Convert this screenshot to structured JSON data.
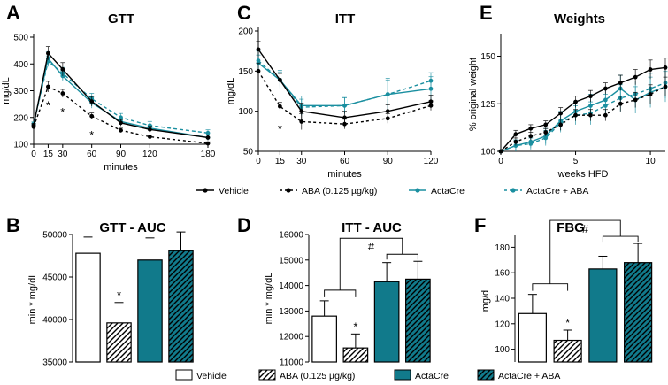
{
  "colors": {
    "vehicle": "#000000",
    "acta": "#1a8fa0",
    "bar_acta": "#117a8b"
  },
  "legend_top": [
    {
      "label": "Vehicle",
      "color": "#000000",
      "dash": false
    },
    {
      "label": "ABA (0.125 µg/kg)",
      "color": "#000000",
      "dash": true
    },
    {
      "label": "ActaCre",
      "color": "#1a8fa0",
      "dash": false
    },
    {
      "label": "ActaCre + ABA",
      "color": "#1a8fa0",
      "dash": true
    }
  ],
  "legend_bottom": [
    {
      "label": "Vehicle",
      "fill": "white"
    },
    {
      "label": "ABA (0.125 µg/kg)",
      "fill": "hatch-white"
    },
    {
      "label": "ActaCre",
      "fill": "teal"
    },
    {
      "label": "ActaCre + ABA",
      "fill": "hatch-teal"
    }
  ],
  "chart_data": [
    {
      "panel": "A",
      "type": "line",
      "title": "GTT",
      "xlabel": "minutes",
      "ylabel": "mg/dL",
      "x": [
        0,
        15,
        30,
        60,
        90,
        120,
        180
      ],
      "xticks": [
        0,
        15,
        30,
        60,
        90,
        120,
        180
      ],
      "xlim": [
        0,
        180
      ],
      "ylim": [
        100,
        500
      ],
      "yticks": [
        100,
        200,
        300,
        400,
        500
      ],
      "series": [
        {
          "name": "Vehicle",
          "values": [
            170,
            440,
            380,
            260,
            180,
            155,
            125
          ],
          "err": [
            8,
            25,
            25,
            18,
            12,
            12,
            10
          ]
        },
        {
          "name": "ABA (0.125 µg/kg)",
          "values": [
            165,
            315,
            290,
            205,
            152,
            128,
            103
          ],
          "err": [
            8,
            20,
            15,
            12,
            8,
            7,
            6
          ]
        },
        {
          "name": "ActaCre",
          "values": [
            175,
            420,
            355,
            255,
            185,
            160,
            125
          ],
          "err": [
            8,
            25,
            20,
            20,
            12,
            12,
            10
          ]
        },
        {
          "name": "ActaCre + ABA",
          "values": [
            175,
            410,
            365,
            270,
            200,
            170,
            142
          ],
          "err": [
            8,
            20,
            22,
            20,
            15,
            15,
            12
          ]
        }
      ],
      "annotations": [
        {
          "x": 15,
          "y": 250,
          "text": "*"
        },
        {
          "x": 30,
          "y": 225,
          "text": "*"
        },
        {
          "x": 60,
          "y": 140,
          "text": "*"
        }
      ]
    },
    {
      "panel": "C",
      "type": "line",
      "title": "ITT",
      "xlabel": "minutes",
      "ylabel": "mg/dL",
      "x": [
        0,
        15,
        30,
        60,
        90,
        120
      ],
      "xticks": [
        0,
        15,
        30,
        60,
        90,
        120
      ],
      "xlim": [
        0,
        120
      ],
      "ylim": [
        50,
        200
      ],
      "yticks": [
        50,
        100,
        150,
        200
      ],
      "series": [
        {
          "name": "Vehicle",
          "values": [
            177,
            139,
            100,
            92,
            100,
            112
          ],
          "err": [
            10,
            8,
            10,
            8,
            8,
            8
          ]
        },
        {
          "name": "ABA (0.125 µg/kg)",
          "values": [
            150,
            106,
            87,
            84,
            91,
            107
          ],
          "err": [
            10,
            5,
            10,
            6,
            6,
            6
          ]
        },
        {
          "name": "ActaCre",
          "values": [
            160,
            139,
            107,
            107,
            121,
            128
          ],
          "err": [
            10,
            10,
            12,
            10,
            18,
            15
          ]
        },
        {
          "name": "ActaCre + ABA",
          "values": [
            163,
            139,
            105,
            107,
            121,
            138
          ],
          "err": [
            12,
            12,
            10,
            10,
            20,
            10
          ]
        }
      ],
      "annotations": [
        {
          "x": 15,
          "y": 80,
          "text": "*"
        }
      ]
    },
    {
      "panel": "E",
      "type": "line",
      "title": "Weights",
      "xlabel": "weeks HFD",
      "ylabel": "% original weight",
      "x": [
        0,
        1,
        2,
        3,
        4,
        5,
        6,
        7,
        8,
        9,
        10,
        11
      ],
      "xticks": [
        0,
        5,
        10
      ],
      "xlim": [
        0,
        11
      ],
      "ylim": [
        100,
        160
      ],
      "yticks": [
        100,
        125,
        150
      ],
      "series": [
        {
          "name": "Vehicle",
          "values": [
            100,
            109,
            112,
            114,
            120,
            126,
            129,
            133,
            136,
            139,
            143,
            144
          ],
          "err": [
            0,
            2,
            2,
            2,
            3,
            3,
            3,
            3,
            4,
            4,
            5,
            5
          ]
        },
        {
          "name": "ABA (0.125 µg/kg)",
          "values": [
            100,
            105,
            108,
            110,
            114,
            119,
            119,
            119,
            125,
            127,
            130,
            134
          ],
          "err": [
            0,
            2,
            2,
            2,
            3,
            3,
            3,
            3,
            4,
            4,
            5,
            5
          ]
        },
        {
          "name": "ActaCre",
          "values": [
            100,
            103,
            105,
            108,
            116,
            121,
            124,
            127,
            133,
            127,
            131,
            134
          ],
          "err": [
            0,
            3,
            3,
            4,
            5,
            5,
            6,
            6,
            7,
            7,
            8,
            8
          ]
        },
        {
          "name": "ActaCre + ABA",
          "values": [
            100,
            103,
            104,
            107,
            115,
            119,
            120,
            124,
            128,
            130,
            133,
            136
          ],
          "err": [
            0,
            3,
            3,
            4,
            5,
            5,
            6,
            6,
            7,
            7,
            8,
            8
          ]
        }
      ],
      "annotations": []
    },
    {
      "panel": "B",
      "type": "bar",
      "title": "GTT - AUC",
      "xlabel": "",
      "ylabel": "min * mg/dL",
      "categories": [
        "Vehicle",
        "ABA (0.125 µg/kg)",
        "ActaCre",
        "ActaCre + ABA"
      ],
      "values": [
        47800,
        39600,
        47000,
        48100
      ],
      "err": [
        1900,
        2400,
        2600,
        2200
      ],
      "ylim": [
        35000,
        50000
      ],
      "yticks": [
        35000,
        40000,
        45000,
        50000
      ],
      "annotations": [
        {
          "index": 1,
          "text": "*"
        }
      ],
      "brackets": []
    },
    {
      "panel": "D",
      "type": "bar",
      "title": "ITT - AUC",
      "xlabel": "",
      "ylabel": "min * mg/dL",
      "categories": [
        "Vehicle",
        "ABA (0.125 µg/kg)",
        "ActaCre",
        "ActaCre + ABA"
      ],
      "values": [
        12800,
        11550,
        14150,
        14250
      ],
      "err": [
        600,
        550,
        750,
        700
      ],
      "ylim": [
        11000,
        16000
      ],
      "yticks": [
        11000,
        12000,
        13000,
        14000,
        15000,
        16000
      ],
      "annotations": [
        {
          "index": 1,
          "text": "*"
        }
      ],
      "brackets": [
        {
          "text": "#"
        }
      ]
    },
    {
      "panel": "F",
      "type": "bar",
      "title": "FBG",
      "xlabel": "",
      "ylabel": "mg/dL",
      "categories": [
        "Vehicle",
        "ABA (0.125 µg/kg)",
        "ActaCre",
        "ActaCre + ABA"
      ],
      "values": [
        128,
        107,
        163,
        168
      ],
      "err": [
        15,
        8,
        10,
        15
      ],
      "ylim": [
        90,
        190
      ],
      "yticks": [
        100,
        120,
        140,
        160,
        180
      ],
      "annotations": [
        {
          "index": 1,
          "text": "*"
        }
      ],
      "brackets": [
        {
          "text": "#"
        }
      ]
    }
  ]
}
